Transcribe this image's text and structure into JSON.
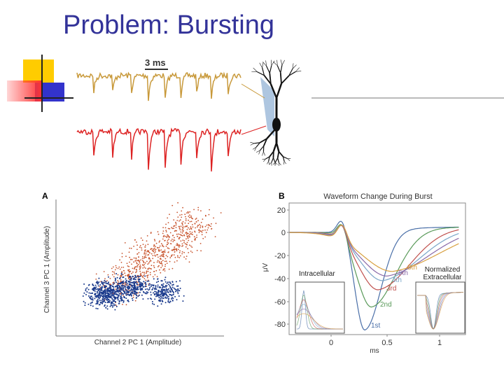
{
  "title": "Problem: Bursting",
  "figure_top": {
    "scale_label": "3 ms"
  },
  "panel_a": {
    "label": "A",
    "y_axis_label": "Channel 3 PC 1 (Amplitude)",
    "x_axis_label": "Channel 2 PC 1 (Amplitude)"
  },
  "panel_b": {
    "label": "B",
    "title": "Waveform Change During Burst",
    "y_axis_label": "μV",
    "x_axis_label": "ms",
    "yticks": [
      "20",
      "0",
      "-20",
      "-40",
      "-60",
      "-80"
    ],
    "xticks": [
      "0",
      "0.5",
      "1"
    ],
    "spike_labels": [
      "1st",
      "2nd",
      "3rd",
      "4th",
      "5th",
      "8th"
    ],
    "inset_left": "Intracellular",
    "inset_right": [
      "Normalized",
      "Extracellular"
    ]
  }
}
